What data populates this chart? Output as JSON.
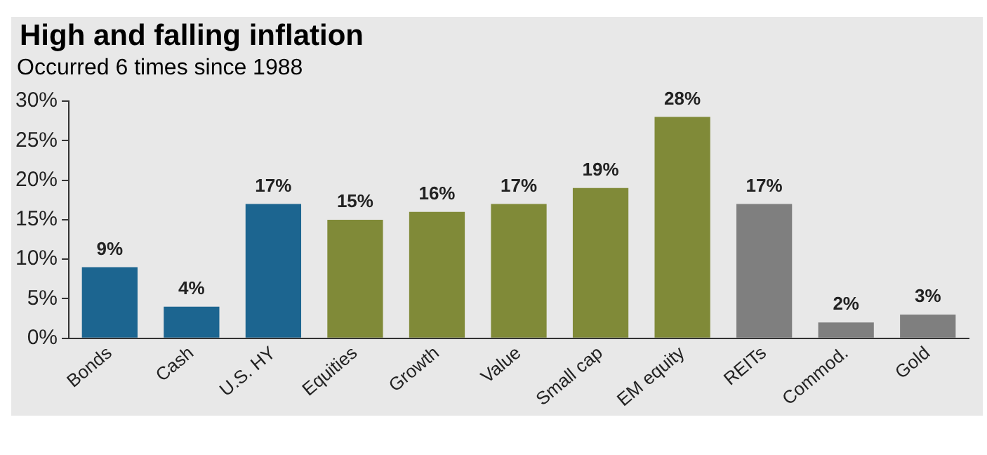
{
  "chart_data": {
    "type": "bar",
    "title": "High and falling inflation",
    "subtitle": "Occurred 6 times since 1988",
    "categories": [
      "Bonds",
      "Cash",
      "U.S. HY",
      "Equities",
      "Growth",
      "Value",
      "Small cap",
      "EM equity",
      "REITs",
      "Commod.",
      "Gold"
    ],
    "values": [
      9,
      4,
      17,
      15,
      16,
      17,
      19,
      28,
      17,
      2,
      3
    ],
    "colors": [
      "#1c6590",
      "#1c6590",
      "#1c6590",
      "#808a38",
      "#808a38",
      "#808a38",
      "#808a38",
      "#808a38",
      "#7f7f7f",
      "#7f7f7f",
      "#7f7f7f"
    ],
    "ylim": [
      0,
      30
    ],
    "yticks": [
      {
        "value": 0,
        "label": "0%"
      },
      {
        "value": 5,
        "label": "5%"
      },
      {
        "value": 10,
        "label": "10%"
      },
      {
        "value": 15,
        "label": "15%"
      },
      {
        "value": 20,
        "label": "20%"
      },
      {
        "value": 25,
        "label": "25%"
      },
      {
        "value": 30,
        "label": "30%"
      }
    ],
    "value_labels": [
      "9%",
      "4%",
      "17%",
      "15%",
      "16%",
      "17%",
      "19%",
      "28%",
      "17%",
      "2%",
      "3%"
    ],
    "grid": false,
    "legend": false
  }
}
